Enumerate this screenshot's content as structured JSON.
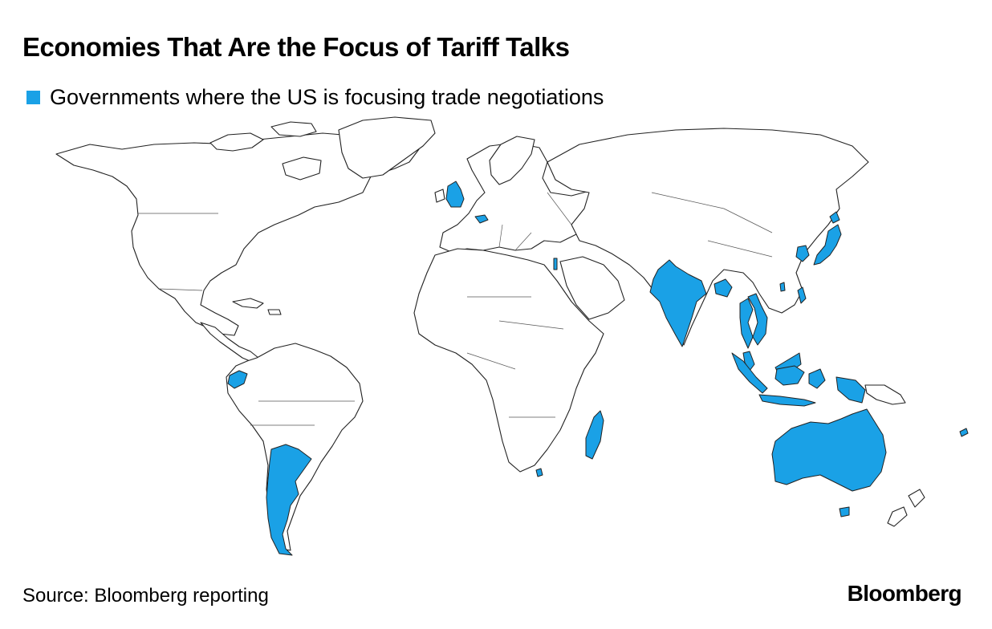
{
  "header": {
    "title": "Economies That Are the Focus of Tariff Talks"
  },
  "legend": {
    "label": "Governments where the US is focusing trade negotiations",
    "color": "#1aa1e6"
  },
  "map": {
    "land_fill": "#ffffff",
    "outline_color": "#222222",
    "focus_color": "#1aa1e6",
    "highlighted_regions": [
      "United Kingdom",
      "Switzerland",
      "Israel",
      "India",
      "Bangladesh",
      "Vietnam",
      "Thailand",
      "Malaysia",
      "Indonesia",
      "Philippines",
      "South Korea",
      "Japan",
      "Taiwan",
      "Australia",
      "Ecuador",
      "Argentina",
      "Madagascar",
      "Lesotho",
      "Fiji"
    ]
  },
  "footer": {
    "source": "Source: Bloomberg reporting",
    "brand": "Bloomberg"
  }
}
